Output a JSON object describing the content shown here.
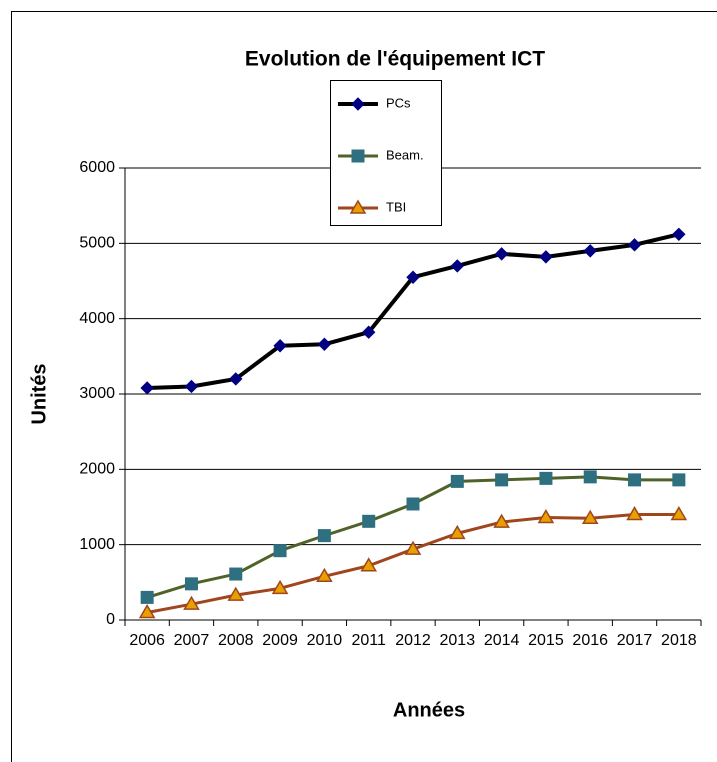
{
  "chart_data": {
    "type": "line",
    "title": "Evolution de l'équipement ICT",
    "xlabel": "Années",
    "ylabel": "Unités",
    "categories": [
      "2006",
      "2007",
      "2008",
      "2009",
      "2010",
      "2011",
      "2012",
      "2013",
      "2014",
      "2015",
      "2016",
      "2017",
      "2018"
    ],
    "series": [
      {
        "name": "PCs",
        "color": "#000000",
        "marker_color": "#000080",
        "marker": "diamond",
        "values": [
          3080,
          3100,
          3200,
          3640,
          3660,
          3820,
          4550,
          4700,
          4860,
          4820,
          4900,
          4980,
          5120
        ]
      },
      {
        "name": "Beam.",
        "color": "#4f6228",
        "marker_color": "#2e6f80",
        "marker": "square",
        "values": [
          300,
          480,
          610,
          920,
          1120,
          1310,
          1540,
          1840,
          1860,
          1880,
          1900,
          1860,
          1860
        ]
      },
      {
        "name": "TBI",
        "color": "#a0461e",
        "marker_color": "#e8a000",
        "marker": "triangle",
        "values": [
          100,
          210,
          330,
          420,
          580,
          720,
          940,
          1150,
          1300,
          1360,
          1350,
          1400,
          1400
        ]
      }
    ],
    "ylim": [
      0,
      6000
    ],
    "yticks": [
      0,
      1000,
      2000,
      3000,
      4000,
      5000,
      6000
    ],
    "grid": true
  }
}
